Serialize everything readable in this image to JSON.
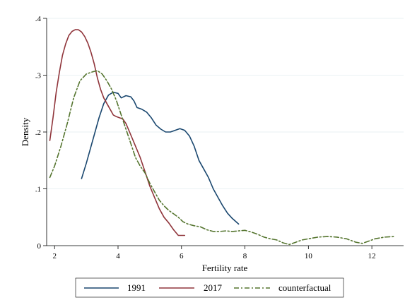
{
  "chart_data": {
    "type": "line",
    "title": "",
    "xlabel": "Fertility rate",
    "ylabel": "Density",
    "xlim": [
      1.75,
      13.0
    ],
    "ylim": [
      0,
      0.4
    ],
    "x_ticks": [
      2,
      4,
      6,
      8,
      10,
      12
    ],
    "x_tick_labels": [
      "2",
      "4",
      "6",
      "8",
      "10",
      "12"
    ],
    "y_ticks": [
      0,
      0.1,
      0.2,
      0.3,
      0.4
    ],
    "y_tick_labels": [
      "0",
      ".1",
      ".2",
      ".3",
      ".4"
    ],
    "grid": "horizontal",
    "legend_position": "bottom",
    "series": [
      {
        "name": "1991",
        "color": "#1a476f",
        "dash": "solid",
        "points": [
          [
            2.85,
            0.118
          ],
          [
            3.0,
            0.145
          ],
          [
            3.2,
            0.185
          ],
          [
            3.4,
            0.225
          ],
          [
            3.55,
            0.25
          ],
          [
            3.7,
            0.265
          ],
          [
            3.85,
            0.27
          ],
          [
            4.0,
            0.268
          ],
          [
            4.1,
            0.26
          ],
          [
            4.25,
            0.264
          ],
          [
            4.4,
            0.262
          ],
          [
            4.5,
            0.255
          ],
          [
            4.6,
            0.243
          ],
          [
            4.75,
            0.24
          ],
          [
            4.9,
            0.235
          ],
          [
            5.05,
            0.225
          ],
          [
            5.2,
            0.212
          ],
          [
            5.35,
            0.205
          ],
          [
            5.5,
            0.2
          ],
          [
            5.65,
            0.2
          ],
          [
            5.8,
            0.203
          ],
          [
            5.95,
            0.206
          ],
          [
            6.1,
            0.203
          ],
          [
            6.25,
            0.193
          ],
          [
            6.4,
            0.175
          ],
          [
            6.55,
            0.15
          ],
          [
            6.7,
            0.135
          ],
          [
            6.85,
            0.12
          ],
          [
            7.0,
            0.1
          ],
          [
            7.15,
            0.085
          ],
          [
            7.3,
            0.07
          ],
          [
            7.45,
            0.057
          ],
          [
            7.6,
            0.048
          ],
          [
            7.8,
            0.038
          ]
        ]
      },
      {
        "name": "2017",
        "color": "#90353b",
        "dash": "solid",
        "points": [
          [
            1.85,
            0.185
          ],
          [
            1.95,
            0.225
          ],
          [
            2.05,
            0.27
          ],
          [
            2.15,
            0.305
          ],
          [
            2.25,
            0.335
          ],
          [
            2.35,
            0.355
          ],
          [
            2.45,
            0.37
          ],
          [
            2.55,
            0.377
          ],
          [
            2.65,
            0.38
          ],
          [
            2.75,
            0.38
          ],
          [
            2.85,
            0.376
          ],
          [
            2.95,
            0.368
          ],
          [
            3.05,
            0.356
          ],
          [
            3.15,
            0.34
          ],
          [
            3.25,
            0.32
          ],
          [
            3.35,
            0.295
          ],
          [
            3.45,
            0.275
          ],
          [
            3.55,
            0.26
          ],
          [
            3.65,
            0.25
          ],
          [
            3.75,
            0.24
          ],
          [
            3.85,
            0.23
          ],
          [
            3.95,
            0.227
          ],
          [
            4.05,
            0.225
          ],
          [
            4.15,
            0.223
          ],
          [
            4.25,
            0.215
          ],
          [
            4.4,
            0.195
          ],
          [
            4.55,
            0.175
          ],
          [
            4.7,
            0.155
          ],
          [
            4.85,
            0.13
          ],
          [
            5.0,
            0.105
          ],
          [
            5.15,
            0.085
          ],
          [
            5.3,
            0.065
          ],
          [
            5.45,
            0.05
          ],
          [
            5.6,
            0.04
          ],
          [
            5.75,
            0.028
          ],
          [
            5.9,
            0.018
          ],
          [
            6.0,
            0.018
          ],
          [
            6.1,
            0.018
          ]
        ]
      },
      {
        "name": "counterfactual",
        "color": "#55752f",
        "dash": "dashdot",
        "points": [
          [
            1.85,
            0.12
          ],
          [
            2.0,
            0.14
          ],
          [
            2.2,
            0.175
          ],
          [
            2.4,
            0.215
          ],
          [
            2.6,
            0.26
          ],
          [
            2.8,
            0.29
          ],
          [
            3.0,
            0.302
          ],
          [
            3.2,
            0.306
          ],
          [
            3.35,
            0.308
          ],
          [
            3.5,
            0.302
          ],
          [
            3.65,
            0.29
          ],
          [
            3.8,
            0.275
          ],
          [
            3.95,
            0.255
          ],
          [
            4.1,
            0.23
          ],
          [
            4.25,
            0.205
          ],
          [
            4.4,
            0.18
          ],
          [
            4.55,
            0.155
          ],
          [
            4.7,
            0.14
          ],
          [
            4.85,
            0.128
          ],
          [
            5.0,
            0.11
          ],
          [
            5.15,
            0.095
          ],
          [
            5.3,
            0.08
          ],
          [
            5.45,
            0.07
          ],
          [
            5.6,
            0.062
          ],
          [
            5.75,
            0.056
          ],
          [
            5.9,
            0.05
          ],
          [
            6.05,
            0.042
          ],
          [
            6.2,
            0.038
          ],
          [
            6.4,
            0.035
          ],
          [
            6.6,
            0.033
          ],
          [
            6.8,
            0.028
          ],
          [
            7.0,
            0.025
          ],
          [
            7.2,
            0.025
          ],
          [
            7.4,
            0.026
          ],
          [
            7.6,
            0.025
          ],
          [
            7.8,
            0.026
          ],
          [
            8.0,
            0.027
          ],
          [
            8.2,
            0.024
          ],
          [
            8.4,
            0.02
          ],
          [
            8.6,
            0.015
          ],
          [
            8.8,
            0.012
          ],
          [
            9.0,
            0.01
          ],
          [
            9.2,
            0.005
          ],
          [
            9.4,
            0.002
          ],
          [
            9.6,
            0.006
          ],
          [
            9.8,
            0.01
          ],
          [
            10.0,
            0.012
          ],
          [
            10.3,
            0.015
          ],
          [
            10.6,
            0.016
          ],
          [
            10.9,
            0.015
          ],
          [
            11.2,
            0.012
          ],
          [
            11.5,
            0.006
          ],
          [
            11.7,
            0.004
          ],
          [
            11.9,
            0.008
          ],
          [
            12.1,
            0.012
          ],
          [
            12.4,
            0.015
          ],
          [
            12.7,
            0.016
          ]
        ]
      }
    ]
  }
}
